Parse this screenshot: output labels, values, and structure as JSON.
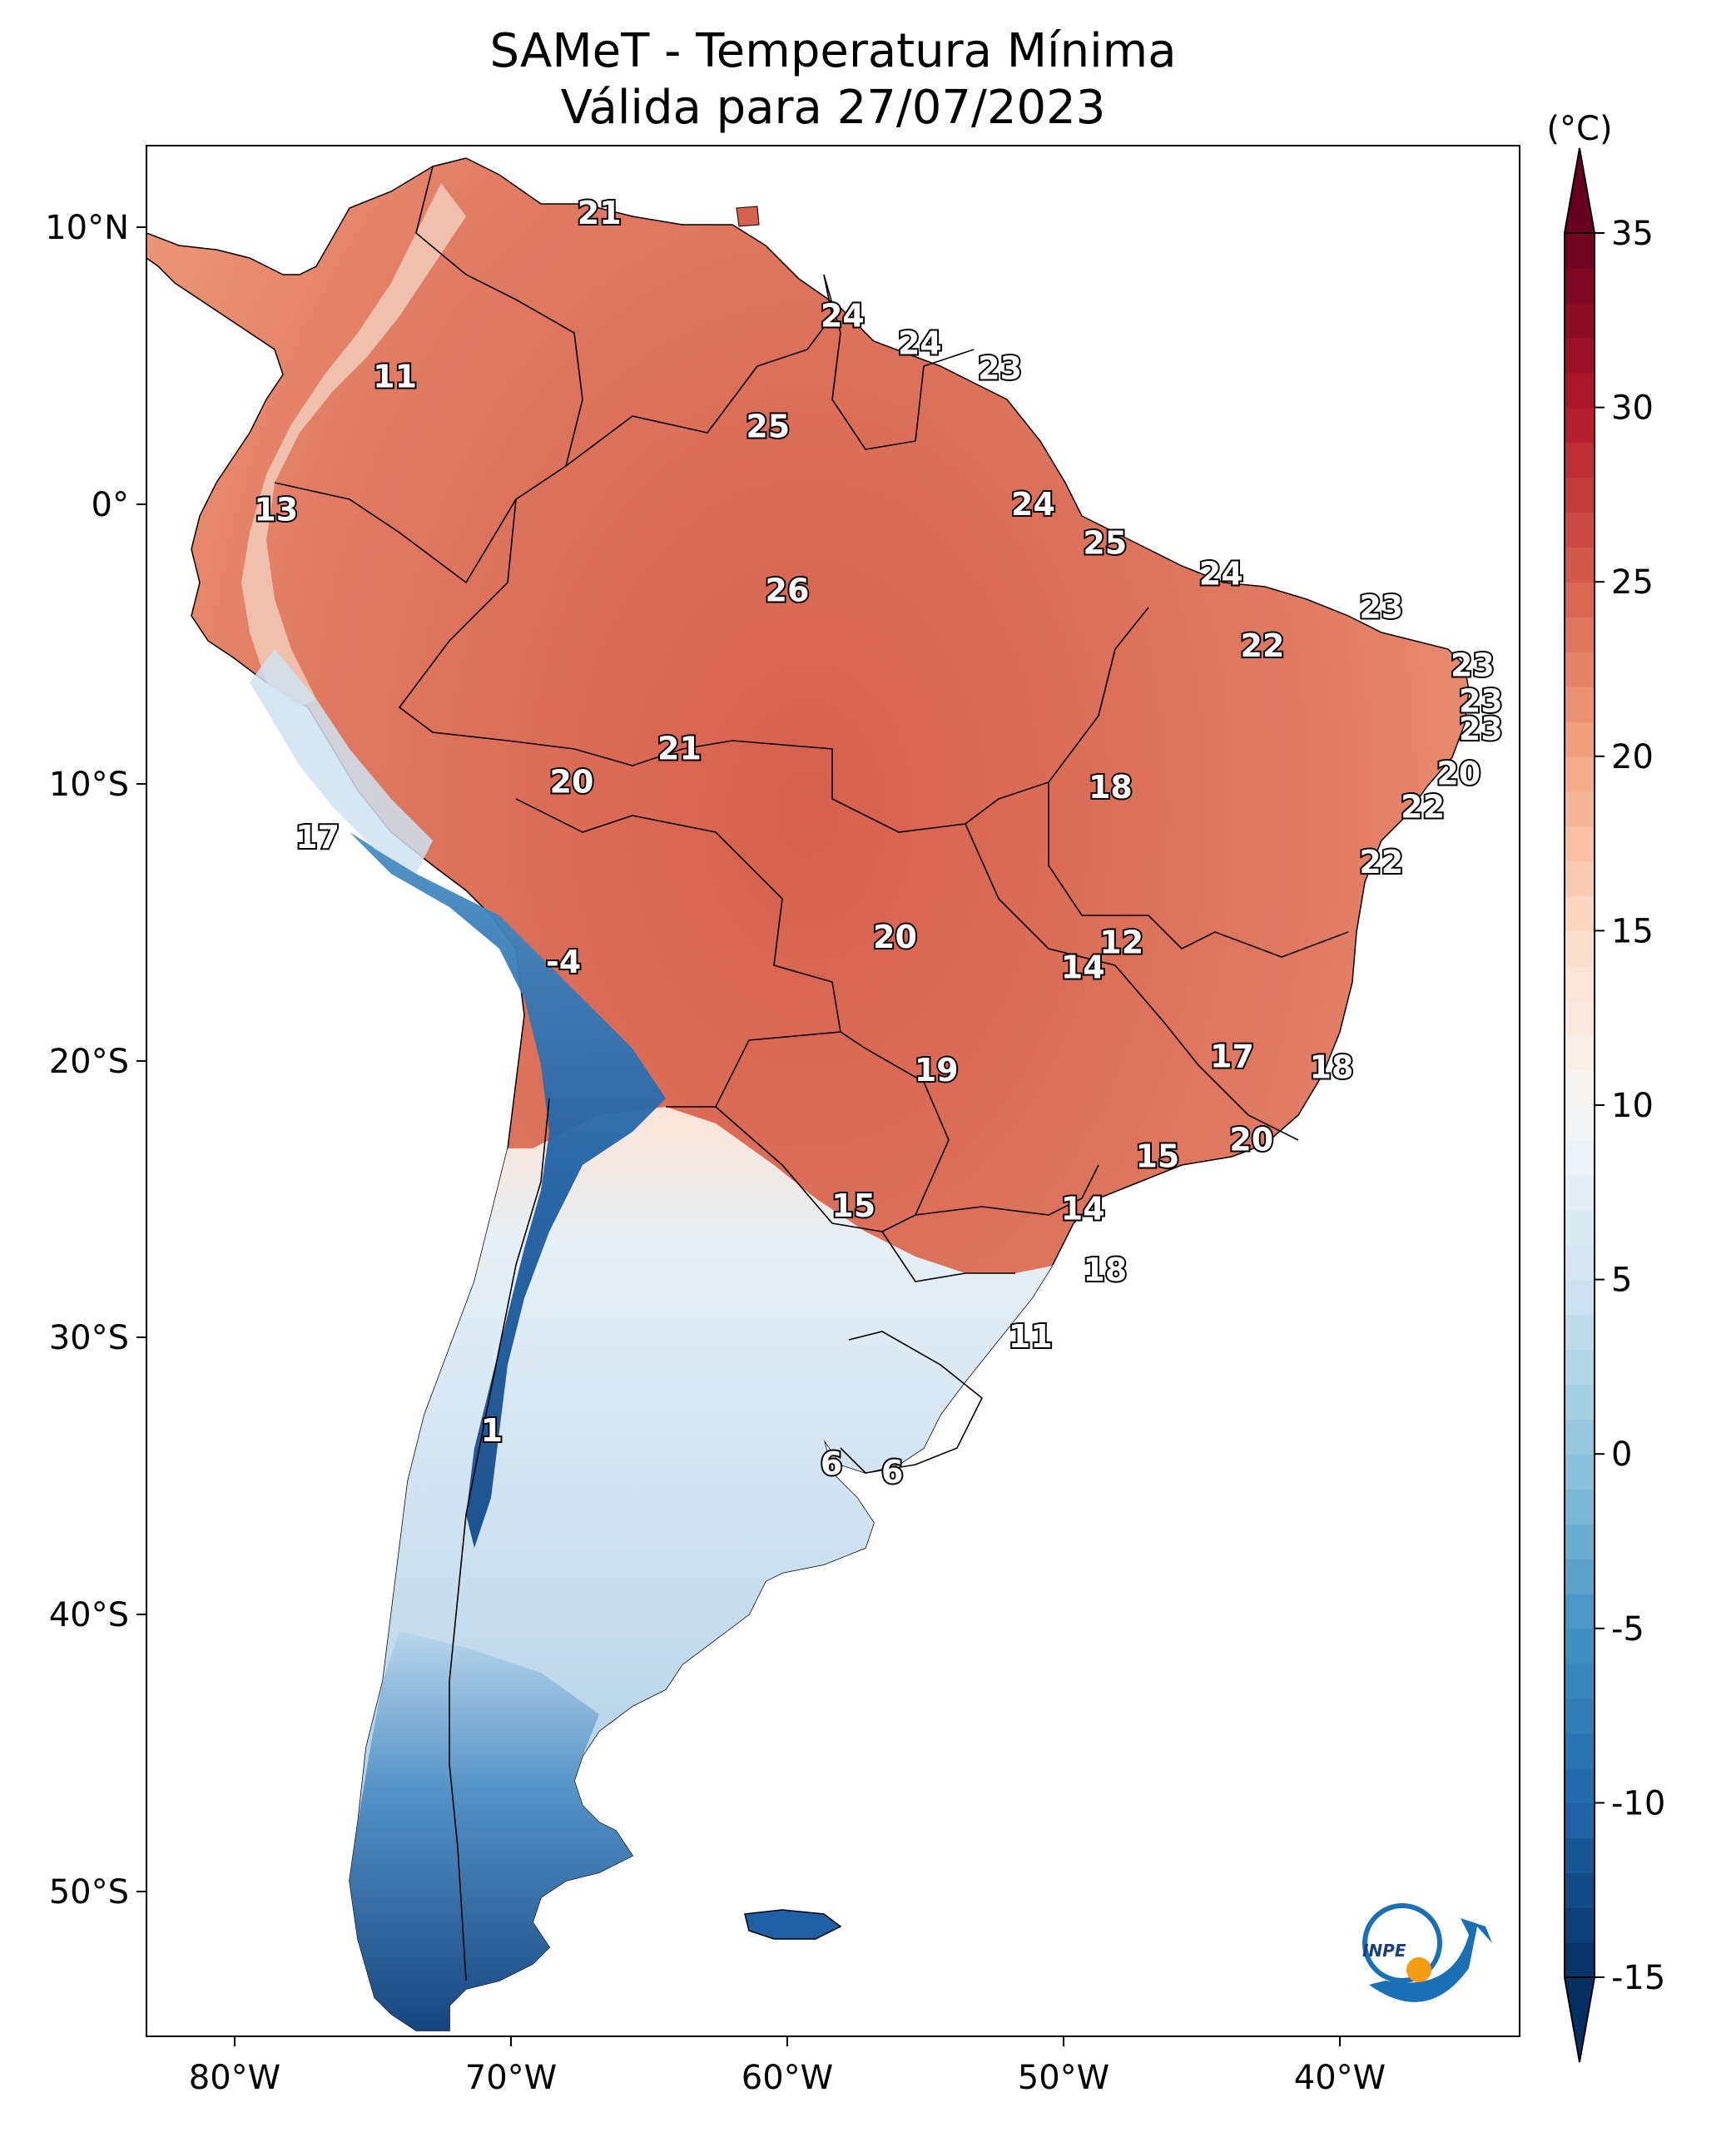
{
  "title_line1": "SAMeT - Temperatura Mínima",
  "title_line2": "Válida para 27/07/2023",
  "colorbar": {
    "unit": "(°C)",
    "min": -15,
    "max": 35,
    "ticks": [
      "35",
      "30",
      "25",
      "20",
      "15",
      "10",
      "5",
      "0",
      "-5",
      "-10",
      "-15"
    ],
    "colors": [
      "#053061",
      "#2166ac",
      "#4393c3",
      "#92c5de",
      "#d1e5f0",
      "#f7f7f7",
      "#fddbc7",
      "#f4a582",
      "#d6604d",
      "#b2182b",
      "#67001f"
    ]
  },
  "axes": {
    "lon_labels": [
      "80°W",
      "70°W",
      "60°W",
      "50°W",
      "40°W"
    ],
    "lat_labels": [
      "10°N",
      "0°",
      "10°S",
      "20°S",
      "30°S",
      "40°S",
      "50°S"
    ]
  },
  "stations": [
    {
      "text": "21",
      "lon": -66.8,
      "lat": 10.5
    },
    {
      "text": "11",
      "lon": -74.2,
      "lat": 4.6
    },
    {
      "text": "13",
      "lon": -78.5,
      "lat": -0.2
    },
    {
      "text": "24",
      "lon": -58.0,
      "lat": 6.8
    },
    {
      "text": "24",
      "lon": -55.2,
      "lat": 5.8
    },
    {
      "text": "23",
      "lon": -52.3,
      "lat": 4.9
    },
    {
      "text": "25",
      "lon": -60.7,
      "lat": 2.8
    },
    {
      "text": "24",
      "lon": -51.1,
      "lat": 0.0
    },
    {
      "text": "25",
      "lon": -48.5,
      "lat": -1.4
    },
    {
      "text": "24",
      "lon": -44.3,
      "lat": -2.5
    },
    {
      "text": "26",
      "lon": -60.0,
      "lat": -3.1
    },
    {
      "text": "23",
      "lon": -38.5,
      "lat": -3.7
    },
    {
      "text": "22",
      "lon": -42.8,
      "lat": -5.1
    },
    {
      "text": "23",
      "lon": -35.2,
      "lat": -5.8
    },
    {
      "text": "23",
      "lon": -34.9,
      "lat": -7.1
    },
    {
      "text": "23",
      "lon": -34.9,
      "lat": -8.1
    },
    {
      "text": "21",
      "lon": -63.9,
      "lat": -8.8
    },
    {
      "text": "20",
      "lon": -67.8,
      "lat": -10.0
    },
    {
      "text": "18",
      "lon": -48.3,
      "lat": -10.2
    },
    {
      "text": "20",
      "lon": -35.7,
      "lat": -9.7
    },
    {
      "text": "22",
      "lon": -37.0,
      "lat": -10.9
    },
    {
      "text": "17",
      "lon": -77.0,
      "lat": -12.0
    },
    {
      "text": "22",
      "lon": -38.5,
      "lat": -12.9
    },
    {
      "text": "12",
      "lon": -47.9,
      "lat": -15.8
    },
    {
      "text": "20",
      "lon": -56.1,
      "lat": -15.6
    },
    {
      "text": "14",
      "lon": -49.3,
      "lat": -16.7
    },
    {
      "text": "-4",
      "lon": -68.1,
      "lat": -16.5
    },
    {
      "text": "17",
      "lon": -43.9,
      "lat": -19.9
    },
    {
      "text": "18",
      "lon": -40.3,
      "lat": -20.3
    },
    {
      "text": "19",
      "lon": -54.6,
      "lat": -20.4
    },
    {
      "text": "20",
      "lon": -43.2,
      "lat": -22.9
    },
    {
      "text": "15",
      "lon": -46.6,
      "lat": -23.5
    },
    {
      "text": "15",
      "lon": -57.6,
      "lat": -25.3
    },
    {
      "text": "14",
      "lon": -49.3,
      "lat": -25.4
    },
    {
      "text": "18",
      "lon": -48.5,
      "lat": -27.6
    },
    {
      "text": "11",
      "lon": -51.2,
      "lat": -30.0
    },
    {
      "text": "1",
      "lon": -70.7,
      "lat": -33.4
    },
    {
      "text": "6",
      "lon": -58.4,
      "lat": -34.6
    },
    {
      "text": "6",
      "lon": -56.2,
      "lat": -34.9
    }
  ],
  "logo_text": "INPE"
}
